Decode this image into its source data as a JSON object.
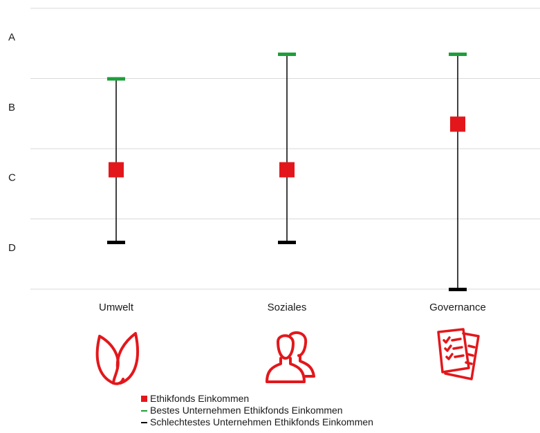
{
  "chart_data": {
    "type": "range",
    "y_axis": {
      "ticks": [
        "A",
        "B",
        "C",
        "D"
      ],
      "range": [
        0,
        4
      ],
      "direction": "A at top, D at bottom"
    },
    "grid": true,
    "categories": [
      "Umwelt",
      "Soziales",
      "Governance"
    ],
    "series": [
      {
        "name": "Ethikfonds Einkommen",
        "marker": "square",
        "color": "#e3171b",
        "values": [
          1.7,
          1.7,
          2.35
        ]
      },
      {
        "name": "Bestes Unternehmen Ethikfonds Einkommen",
        "marker": "dash",
        "color": "#1e9e3a",
        "values": [
          3.0,
          3.35,
          3.35
        ]
      },
      {
        "name": "Schlechtestes Unternehmen Ethikfonds Einkommen",
        "marker": "dash",
        "color": "#000000",
        "values": [
          0.67,
          0.67,
          0.0
        ]
      }
    ],
    "legend_position": "bottom"
  },
  "icons": [
    "leaf-icon",
    "people-icon",
    "checklist-icon"
  ],
  "colors": {
    "accent": "#e3171b",
    "best": "#1e9e3a",
    "worst": "#000000",
    "grid": "#d9d9d9"
  }
}
